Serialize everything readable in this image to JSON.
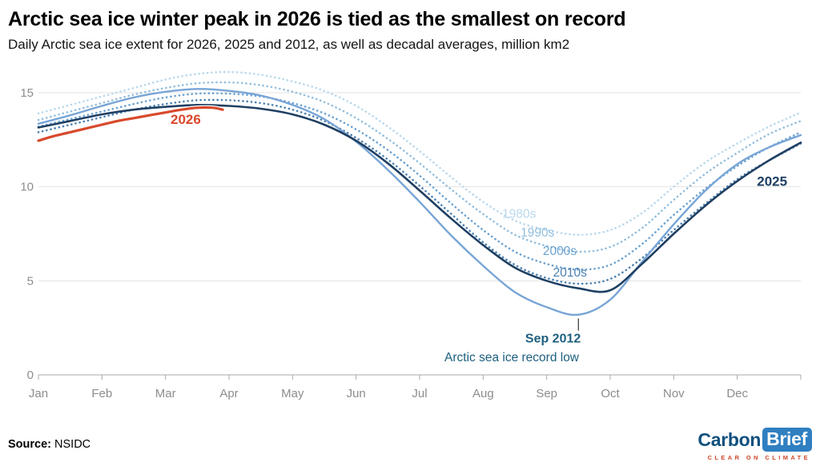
{
  "header": {
    "title": "Arctic sea ice winter peak in 2026 is tied as the smallest on record",
    "subtitle": "Daily Arctic sea ice extent for 2026, 2025 and 2012, as well as decadal averages, million km2"
  },
  "footer": {
    "source_label": "Source:",
    "source_value": "NSIDC",
    "logo": {
      "part1": "Carbon",
      "part2": "Brief",
      "tagline": "CLEAR ON CLIMATE"
    }
  },
  "chart_data": {
    "type": "line",
    "title": "Arctic sea ice winter peak in 2026 is tied as the smallest on record",
    "subtitle": "Daily Arctic sea ice extent for 2026, 2025 and 2012, as well as decadal averages, million km2",
    "unit": "million km2",
    "x_unit": "months (0 = Jan 1, 12 = Dec 31)",
    "xlim": [
      0,
      12
    ],
    "ylim": [
      0,
      16.5
    ],
    "yticks": [
      0,
      5,
      10,
      15
    ],
    "xtick_labels": [
      "Jan",
      "Feb",
      "Mar",
      "Apr",
      "May",
      "Jun",
      "Jul",
      "Aug",
      "Sep",
      "Oct",
      "Nov",
      "Dec"
    ],
    "grid": "horizontal",
    "series": [
      {
        "name": "1980s",
        "style": "dotted",
        "width": 2.6,
        "color": "#b9d8ec",
        "x": [
          0,
          0.5,
          1,
          1.5,
          2,
          2.5,
          3,
          3.5,
          4,
          4.5,
          5,
          5.5,
          6,
          6.5,
          7,
          7.5,
          8,
          8.5,
          9,
          9.5,
          10,
          10.5,
          11,
          11.5,
          12
        ],
        "values": [
          13.9,
          14.35,
          14.8,
          15.25,
          15.7,
          16.0,
          16.1,
          15.95,
          15.6,
          15.1,
          14.3,
          13.2,
          11.9,
          10.5,
          9.2,
          8.2,
          7.7,
          7.45,
          7.7,
          8.6,
          10.0,
          11.3,
          12.3,
          13.2,
          13.95
        ]
      },
      {
        "name": "1990s",
        "style": "dotted",
        "width": 2.6,
        "color": "#92bede",
        "x": [
          0,
          0.5,
          1,
          1.5,
          2,
          2.5,
          3,
          3.5,
          4,
          4.5,
          5,
          5.5,
          6,
          6.5,
          7,
          7.5,
          8,
          8.5,
          9,
          9.5,
          10,
          10.5,
          11,
          11.5,
          12
        ],
        "values": [
          13.55,
          14.0,
          14.45,
          14.9,
          15.25,
          15.5,
          15.55,
          15.4,
          15.05,
          14.5,
          13.65,
          12.55,
          11.25,
          9.85,
          8.55,
          7.45,
          6.85,
          6.55,
          6.8,
          7.8,
          9.3,
          10.7,
          11.8,
          12.8,
          13.5
        ]
      },
      {
        "name": "2000s",
        "style": "dotted",
        "width": 2.6,
        "color": "#6ba2d1",
        "x": [
          0,
          0.5,
          1,
          1.5,
          2,
          2.5,
          3,
          3.5,
          4,
          4.5,
          5,
          5.5,
          6,
          6.5,
          7,
          7.5,
          8,
          8.5,
          9,
          9.5,
          10,
          10.5,
          11,
          11.5,
          12
        ],
        "values": [
          13.2,
          13.6,
          14.0,
          14.4,
          14.75,
          14.95,
          14.95,
          14.8,
          14.45,
          13.9,
          13.05,
          11.95,
          10.6,
          9.1,
          7.7,
          6.55,
          5.9,
          5.6,
          5.85,
          6.95,
          8.5,
          9.9,
          11.1,
          12.1,
          12.9
        ]
      },
      {
        "name": "2010s",
        "style": "dotted",
        "width": 2.6,
        "color": "#4a80b0",
        "x": [
          0,
          0.5,
          1,
          1.5,
          2,
          2.5,
          3,
          3.5,
          4,
          4.5,
          5,
          5.5,
          6,
          6.5,
          7,
          7.5,
          8,
          8.5,
          9,
          9.5,
          10,
          10.5,
          11,
          11.5,
          12
        ],
        "values": [
          12.9,
          13.3,
          13.7,
          14.1,
          14.4,
          14.6,
          14.6,
          14.45,
          14.1,
          13.5,
          12.6,
          11.45,
          10.05,
          8.55,
          7.05,
          5.85,
          5.15,
          4.85,
          5.1,
          6.2,
          7.7,
          9.1,
          10.4,
          11.4,
          12.3
        ]
      },
      {
        "name": "2012",
        "style": "solid",
        "width": 2.4,
        "color": "#78a5d6",
        "x": [
          0,
          0.5,
          1,
          1.5,
          2,
          2.5,
          3,
          3.5,
          4,
          4.5,
          5,
          5.5,
          6,
          6.5,
          7,
          7.5,
          8,
          8.5,
          9,
          9.5,
          10,
          10.5,
          11,
          11.5,
          12
        ],
        "values": [
          13.35,
          13.8,
          14.3,
          14.75,
          15.05,
          15.2,
          15.1,
          14.85,
          14.35,
          13.6,
          12.4,
          10.9,
          9.2,
          7.4,
          5.8,
          4.4,
          3.6,
          3.2,
          4.0,
          6.0,
          8.0,
          9.8,
          11.2,
          12.1,
          12.75
        ]
      },
      {
        "name": "2025",
        "style": "solid",
        "width": 2.6,
        "color": "#1f3f62",
        "x": [
          0,
          0.5,
          1,
          1.5,
          2,
          2.5,
          3,
          3.5,
          4,
          4.5,
          5,
          5.5,
          6,
          6.5,
          7,
          7.5,
          8,
          8.5,
          9,
          9.5,
          10,
          10.5,
          11,
          11.5,
          12
        ],
        "values": [
          13.15,
          13.5,
          13.85,
          14.1,
          14.25,
          14.35,
          14.3,
          14.15,
          13.85,
          13.3,
          12.45,
          11.25,
          9.8,
          8.3,
          6.9,
          5.7,
          5.0,
          4.6,
          4.5,
          5.9,
          7.5,
          9.0,
          10.3,
          11.4,
          12.35
        ]
      },
      {
        "name": "2026",
        "style": "solid",
        "width": 3.2,
        "casing": true,
        "color": "#d8492c",
        "x": [
          0,
          0.25,
          0.5,
          0.75,
          1,
          1.25,
          1.5,
          1.75,
          2,
          2.25,
          2.5,
          2.75,
          2.9
        ],
        "values": [
          12.45,
          12.7,
          12.9,
          13.1,
          13.3,
          13.5,
          13.65,
          13.8,
          13.95,
          14.1,
          14.2,
          14.2,
          14.1
        ]
      }
    ],
    "labels": [
      {
        "text": "1980s",
        "x": 7.3,
        "y": 8.35,
        "color": "#b9d8ec",
        "bold": false,
        "size": 15.5
      },
      {
        "text": "1990s",
        "x": 7.59,
        "y": 7.36,
        "color": "#92bede",
        "bold": false,
        "size": 15.5
      },
      {
        "text": "2000s",
        "x": 7.94,
        "y": 6.38,
        "color": "#6ba2d1",
        "bold": false,
        "size": 15.5
      },
      {
        "text": "2010s",
        "x": 8.1,
        "y": 5.23,
        "color": "#4a80b0",
        "bold": false,
        "size": 15.5
      },
      {
        "text": "2026",
        "x": 2.08,
        "y": 13.35,
        "color": "#d8492c",
        "bold": true,
        "size": 17
      },
      {
        "text": "2025",
        "x": 11.31,
        "y": 10.05,
        "color": "#1f3f62",
        "bold": true,
        "size": 17
      }
    ],
    "annotation": {
      "x": 8.5,
      "y_top": 3.0,
      "y_bottom": 2.35,
      "line1": "Sep 2012",
      "line1_x": 8.1,
      "line1_y": 1.72,
      "line2": "Arctic sea ice record low",
      "line2_x": 7.45,
      "line2_y": 0.72,
      "color": "#1d5f7f",
      "tick_color": "#444444"
    }
  }
}
